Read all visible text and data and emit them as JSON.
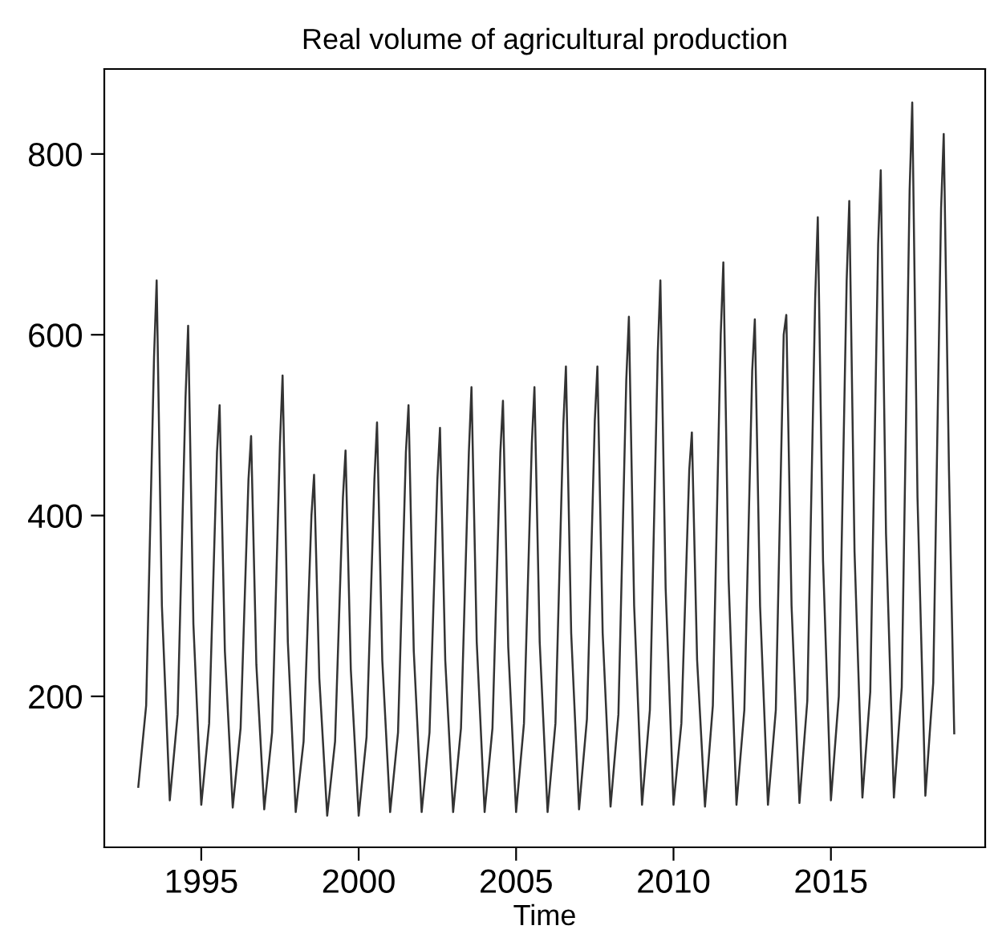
{
  "chart_data": {
    "type": "line",
    "title": "Real volume of agricultural production",
    "xlabel": "Time",
    "x": [
      1993.0,
      1993.25,
      1993.5,
      1993.583,
      1993.75,
      1994.0,
      1994.25,
      1994.5,
      1994.583,
      1994.75,
      1995.0,
      1995.25,
      1995.5,
      1995.583,
      1995.75,
      1996.0,
      1996.25,
      1996.5,
      1996.583,
      1996.75,
      1997.0,
      1997.25,
      1997.5,
      1997.583,
      1997.75,
      1998.0,
      1998.25,
      1998.5,
      1998.583,
      1998.75,
      1999.0,
      1999.25,
      1999.5,
      1999.583,
      1999.75,
      2000.0,
      2000.25,
      2000.5,
      2000.583,
      2000.75,
      2001.0,
      2001.25,
      2001.5,
      2001.583,
      2001.75,
      2002.0,
      2002.25,
      2002.5,
      2002.583,
      2002.75,
      2003.0,
      2003.25,
      2003.5,
      2003.583,
      2003.75,
      2004.0,
      2004.25,
      2004.5,
      2004.583,
      2004.75,
      2005.0,
      2005.25,
      2005.5,
      2005.583,
      2005.75,
      2006.0,
      2006.25,
      2006.5,
      2006.583,
      2006.75,
      2007.0,
      2007.25,
      2007.5,
      2007.583,
      2007.75,
      2008.0,
      2008.25,
      2008.5,
      2008.583,
      2008.75,
      2009.0,
      2009.25,
      2009.5,
      2009.583,
      2009.75,
      2010.0,
      2010.25,
      2010.5,
      2010.583,
      2010.75,
      2011.0,
      2011.25,
      2011.5,
      2011.583,
      2011.75,
      2012.0,
      2012.25,
      2012.5,
      2012.583,
      2012.75,
      2013.0,
      2013.25,
      2013.5,
      2013.583,
      2013.75,
      2014.0,
      2014.25,
      2014.5,
      2014.583,
      2014.75,
      2015.0,
      2015.25,
      2015.5,
      2015.583,
      2015.75,
      2016.0,
      2016.25,
      2016.5,
      2016.583,
      2016.75,
      2017.0,
      2017.25,
      2017.5,
      2017.583,
      2017.75,
      2018.0,
      2018.25,
      2018.5,
      2018.583,
      2018.75,
      2018.917
    ],
    "series": [
      {
        "color": "#333333",
        "values": [
          100,
          190,
          575,
          660,
          300,
          85,
          180,
          530,
          610,
          280,
          80,
          170,
          470,
          522,
          250,
          77,
          165,
          440,
          488,
          235,
          75,
          160,
          480,
          555,
          260,
          72,
          150,
          400,
          445,
          220,
          68,
          150,
          420,
          472,
          230,
          68,
          155,
          440,
          503,
          240,
          72,
          160,
          470,
          522,
          250,
          72,
          160,
          440,
          497,
          240,
          72,
          165,
          470,
          542,
          260,
          72,
          165,
          470,
          527,
          255,
          72,
          170,
          480,
          542,
          260,
          72,
          170,
          500,
          565,
          270,
          75,
          175,
          505,
          565,
          270,
          78,
          180,
          550,
          620,
          300,
          80,
          185,
          580,
          660,
          320,
          80,
          170,
          450,
          492,
          240,
          78,
          190,
          600,
          680,
          330,
          80,
          185,
          560,
          617,
          300,
          80,
          185,
          600,
          622,
          300,
          82,
          195,
          640,
          730,
          350,
          85,
          200,
          660,
          748,
          360,
          88,
          205,
          700,
          782,
          380,
          88,
          210,
          760,
          857,
          420,
          90,
          215,
          740,
          822,
          450,
          159
        ]
      }
    ],
    "xlim": [
      1991.92,
      2019.9
    ],
    "ylim": [
      33,
      894
    ],
    "xticks": [
      1995,
      2000,
      2005,
      2010,
      2015
    ],
    "yticks": [
      200,
      400,
      600,
      800
    ],
    "grid": false,
    "legend": false,
    "line_style": "solid",
    "marker": "none"
  }
}
